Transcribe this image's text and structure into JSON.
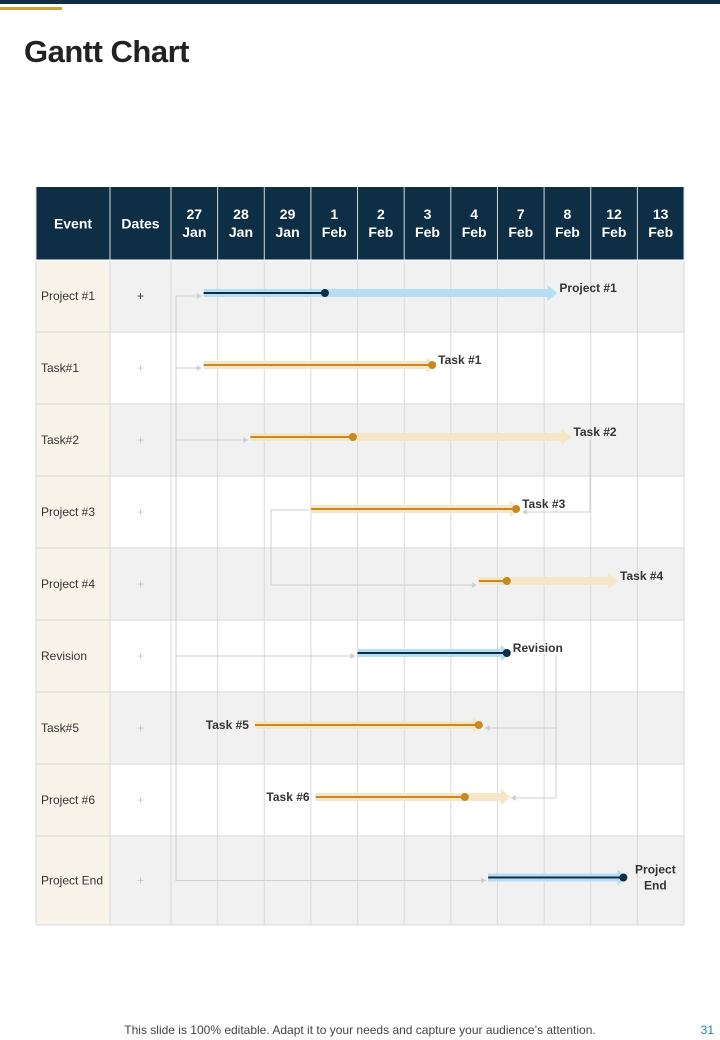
{
  "page": {
    "title": "Gantt Chart",
    "footer": "This slide is 100% editable. Adapt it to your needs and capture your audience’s attention.",
    "page_number": "31"
  },
  "colors": {
    "header_bg": "#0d2e44",
    "header_text": "#ffffff",
    "accent_gold": "#c9a23c",
    "gold_line": "#c88a20",
    "gold_light": "#f5e6c8",
    "blue_light": "#b7ddf3",
    "navy": "#0d2e44",
    "event_bg": "#f8f4ea",
    "row_alt": "#f1f1f1",
    "grid": "#d9d9d9",
    "connector": "#cfcfcf"
  },
  "chart_data": {
    "type": "table",
    "title": "Gantt Chart",
    "header": {
      "event": "Event",
      "dates": "Dates"
    },
    "dates": [
      [
        "27",
        "Jan"
      ],
      [
        "28",
        "Jan"
      ],
      [
        "29",
        "Jan"
      ],
      [
        "1",
        "Feb"
      ],
      [
        "2",
        "Feb"
      ],
      [
        "3",
        "Feb"
      ],
      [
        "4",
        "Feb"
      ],
      [
        "7",
        "Feb"
      ],
      [
        "8",
        "Feb"
      ],
      [
        "12",
        "Feb"
      ],
      [
        "13",
        "Feb"
      ]
    ],
    "rows": [
      {
        "event": "Project #1",
        "dates_mark": "+"
      },
      {
        "event": "Task#1",
        "dates_mark": "+"
      },
      {
        "event": "Task#2",
        "dates_mark": "+"
      },
      {
        "event": "Project #3",
        "dates_mark": "+"
      },
      {
        "event": "Project #4",
        "dates_mark": "+"
      },
      {
        "event": "Revision",
        "dates_mark": "+"
      },
      {
        "event": "Task#5",
        "dates_mark": "+"
      },
      {
        "event": "Project #6",
        "dates_mark": "+"
      },
      {
        "event": "Project End",
        "dates_mark": "+"
      }
    ],
    "bars": [
      {
        "row": 0,
        "style": "blue",
        "start": 0.7,
        "progress_end": 3.3,
        "end": 8.2,
        "label": [
          "Project #1"
        ],
        "label_side": "right"
      },
      {
        "row": 1,
        "style": "gold",
        "start": 0.7,
        "progress_end": 5.6,
        "end": 5.6,
        "label": [
          "Task #1"
        ],
        "label_side": "right"
      },
      {
        "row": 2,
        "style": "gold",
        "start": 1.7,
        "progress_end": 3.9,
        "end": 8.5,
        "label": [
          "Task #2"
        ],
        "label_side": "right"
      },
      {
        "row": 3,
        "style": "gold",
        "start": 3.0,
        "progress_end": 7.4,
        "end": 7.4,
        "label": [
          "Task #3"
        ],
        "label_side": "right"
      },
      {
        "row": 4,
        "style": "gold",
        "start": 6.6,
        "progress_end": 7.2,
        "end": 9.5,
        "label": [
          "Task #4"
        ],
        "label_side": "right"
      },
      {
        "row": 5,
        "style": "blue",
        "start": 4.0,
        "progress_end": 7.2,
        "end": 7.2,
        "label": [
          "Revision"
        ],
        "label_side": "right"
      },
      {
        "row": 6,
        "style": "gold",
        "start": 1.8,
        "progress_end": 6.6,
        "end": 6.6,
        "label": [
          "Task #5"
        ],
        "label_side": "left"
      },
      {
        "row": 7,
        "style": "gold",
        "start": 3.1,
        "progress_end": 6.3,
        "end": 7.2,
        "label": [
          "Task #6"
        ],
        "label_side": "left"
      },
      {
        "row": 8,
        "style": "blue",
        "start": 6.8,
        "progress_end": 9.7,
        "end": 9.7,
        "label": [
          "Project",
          "End"
        ],
        "label_side": "right"
      }
    ]
  }
}
